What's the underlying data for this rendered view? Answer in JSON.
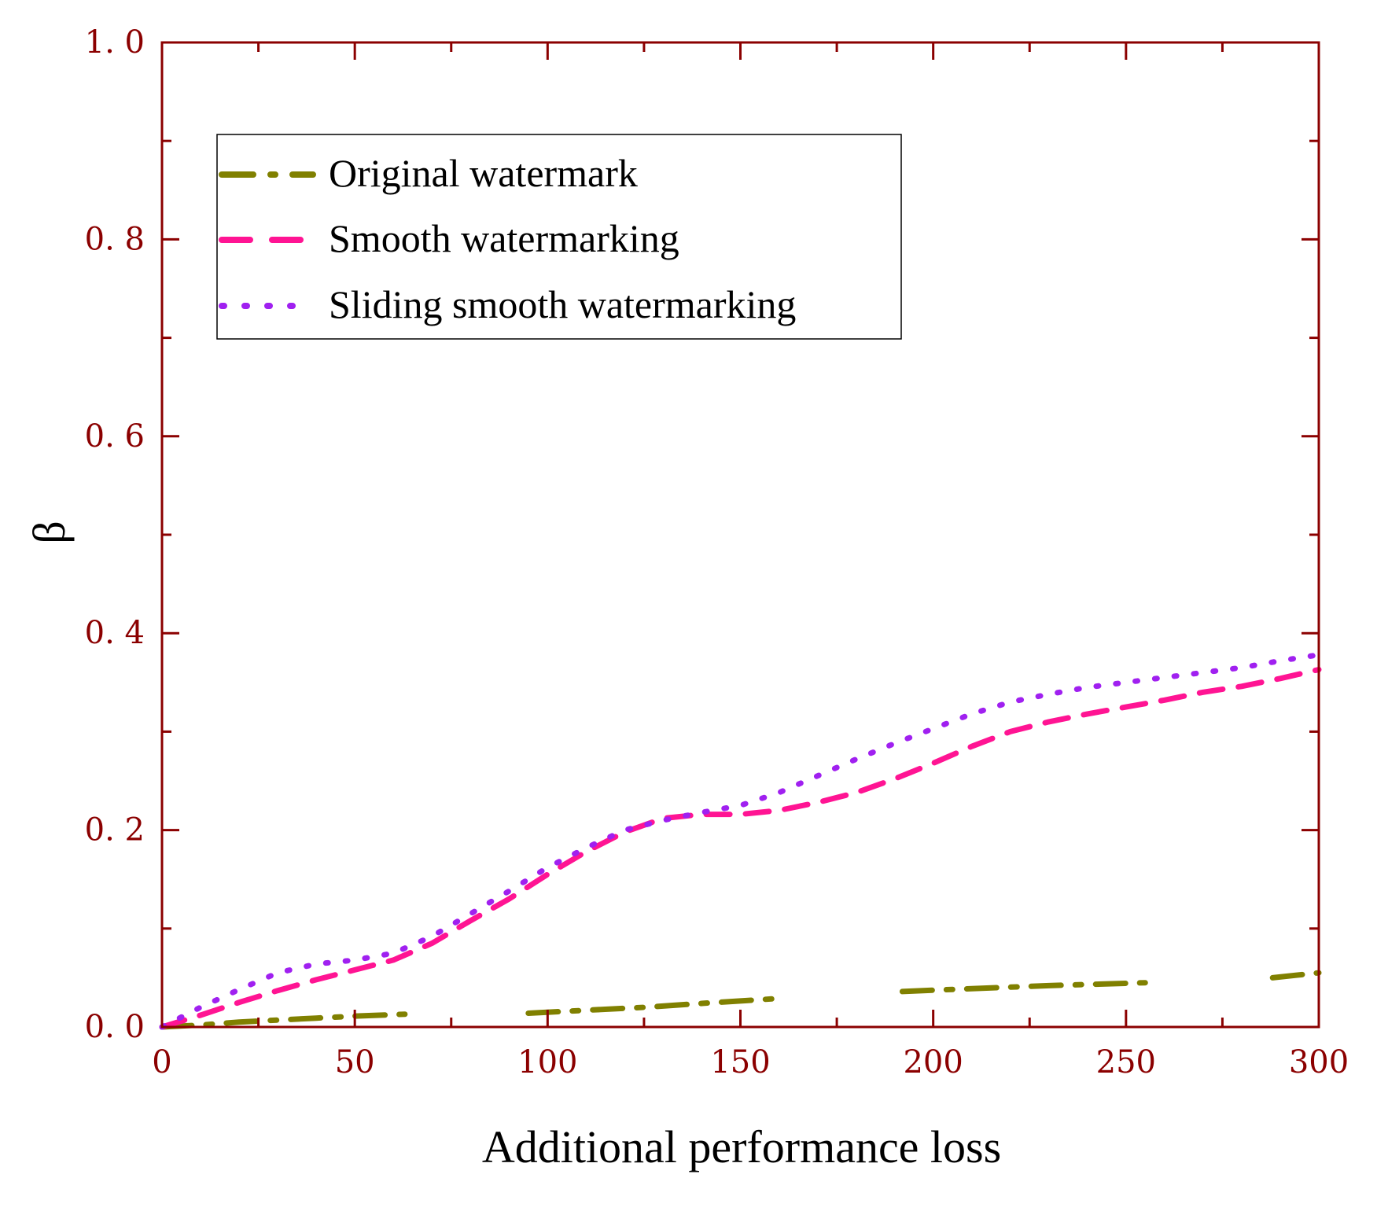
{
  "chart_data": {
    "type": "line",
    "title": "",
    "xlabel": "Additional performance loss",
    "ylabel": "β",
    "xlim": [
      0,
      300
    ],
    "ylim": [
      0,
      1.0
    ],
    "xticks": [
      0,
      50,
      100,
      150,
      200,
      250,
      300
    ],
    "yticks": [
      0.0,
      0.2,
      0.4,
      0.6,
      0.8,
      1.0
    ],
    "xtick_labels": [
      "0",
      "50",
      "100",
      "150",
      "200",
      "250",
      "300"
    ],
    "ytick_labels": [
      "0. 0",
      "0. 2",
      "0. 4",
      "0. 6",
      "0. 8",
      "1. 0"
    ],
    "grid": false,
    "legend_position": "top-left",
    "axis_color": "#8b0000",
    "series": [
      {
        "name": "Original watermark",
        "color": "#808000",
        "style": "dash-dot",
        "segments": [
          {
            "x": [
              0,
              10,
              20,
              30,
              40,
              50,
              63
            ],
            "y": [
              0.0,
              0.002,
              0.005,
              0.007,
              0.009,
              0.011,
              0.013
            ]
          },
          {
            "x": [
              95,
              110,
              125,
              140,
              160
            ],
            "y": [
              0.014,
              0.017,
              0.02,
              0.024,
              0.029
            ]
          },
          {
            "x": [
              192,
              210,
              230,
              255
            ],
            "y": [
              0.036,
              0.039,
              0.042,
              0.045
            ]
          },
          {
            "x": [
              288,
              300
            ],
            "y": [
              0.05,
              0.055
            ]
          }
        ]
      },
      {
        "name": "Smooth watermarking",
        "color": "#ff1493",
        "style": "dashed",
        "segments": [
          {
            "x": [
              0,
              10,
              20,
              30,
              40,
              50,
              60,
              70,
              80,
              90,
              100,
              110,
              120,
              130,
              140,
              150,
              160,
              170,
              180,
              190,
              200,
              210,
              220,
              230,
              240,
              250,
              260,
              270,
              280,
              290,
              300
            ],
            "y": [
              0.0,
              0.012,
              0.025,
              0.037,
              0.048,
              0.058,
              0.068,
              0.085,
              0.108,
              0.13,
              0.155,
              0.178,
              0.198,
              0.212,
              0.216,
              0.216,
              0.22,
              0.228,
              0.238,
              0.252,
              0.268,
              0.285,
              0.3,
              0.31,
              0.318,
              0.325,
              0.332,
              0.34,
              0.346,
              0.354,
              0.363
            ]
          }
        ]
      },
      {
        "name": "Sliding smooth watermarking",
        "color": "#a020f0",
        "style": "dotted",
        "segments": [
          {
            "x": [
              0,
              10,
              20,
              30,
              40,
              50,
              60,
              70,
              80,
              90,
              100,
              110,
              120,
              130,
              140,
              150,
              160,
              170,
              180,
              190,
              200,
              210,
              220,
              230,
              240,
              250,
              260,
              270,
              280,
              290,
              300
            ],
            "y": [
              0.0,
              0.02,
              0.038,
              0.055,
              0.064,
              0.068,
              0.075,
              0.092,
              0.115,
              0.138,
              0.162,
              0.182,
              0.2,
              0.21,
              0.218,
              0.225,
              0.238,
              0.255,
              0.272,
              0.288,
              0.303,
              0.318,
              0.33,
              0.338,
              0.345,
              0.35,
              0.355,
              0.36,
              0.365,
              0.372,
              0.378
            ]
          }
        ]
      }
    ]
  }
}
